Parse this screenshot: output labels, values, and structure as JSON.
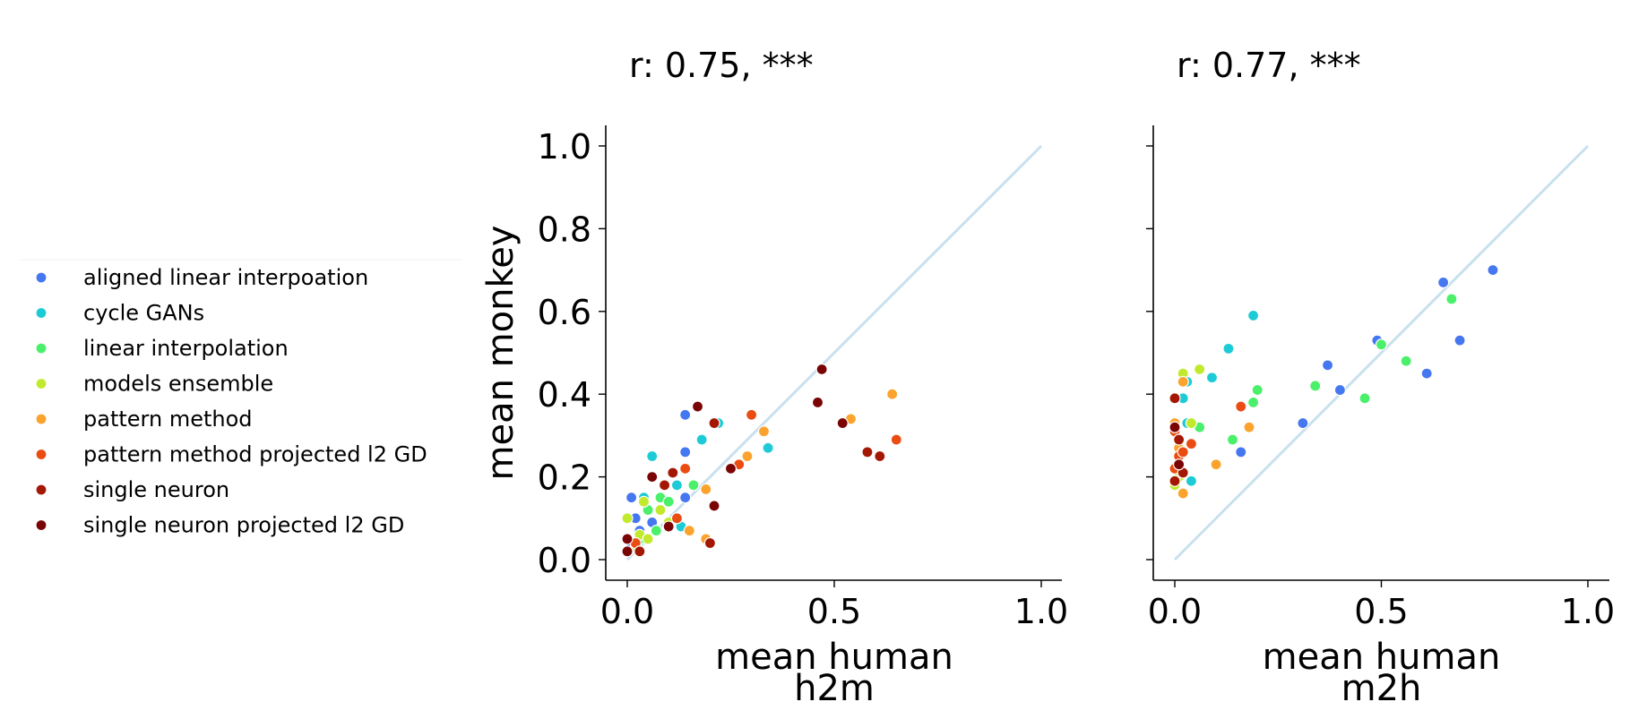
{
  "legend": {
    "items": [
      {
        "label": "aligned linear interpoation",
        "color": "#4577f0"
      },
      {
        "label": "cycle GANs",
        "color": "#1dcbd6"
      },
      {
        "label": "linear interpolation",
        "color": "#4af06a"
      },
      {
        "label": "models ensemble",
        "color": "#c2ea2d"
      },
      {
        "label": "pattern method",
        "color": "#fba32d"
      },
      {
        "label": "pattern method projected l2 GD",
        "color": "#ea4c12"
      },
      {
        "label": "single neuron",
        "color": "#a41803"
      },
      {
        "label": "single neuron projected l2 GD",
        "color": "#7a0403"
      }
    ]
  },
  "chart_data": [
    {
      "type": "scatter",
      "title": "r: 0.75, ***",
      "xlabel": "mean human",
      "xlabel2": "h2m",
      "ylabel": "mean monkey",
      "xlim": [
        -0.05,
        1.05
      ],
      "ylim": [
        -0.05,
        1.05
      ],
      "xticks": [
        "0.0",
        "0.5",
        "1.0"
      ],
      "yticks": [
        "0.0",
        "0.2",
        "0.4",
        "0.6",
        "0.8",
        "1.0"
      ],
      "grid": false,
      "identity_line": true,
      "series": [
        {
          "color": "#4577f0",
          "points": [
            [
              0.14,
              0.35
            ],
            [
              0.14,
              0.26
            ],
            [
              0.01,
              0.15
            ],
            [
              0.02,
              0.1
            ],
            [
              0.03,
              0.07
            ],
            [
              0.01,
              0.03
            ],
            [
              0.06,
              0.09
            ],
            [
              0.14,
              0.15
            ]
          ]
        },
        {
          "color": "#1dcbd6",
          "points": [
            [
              0.06,
              0.25
            ],
            [
              0.22,
              0.33
            ],
            [
              0.34,
              0.27
            ],
            [
              0.18,
              0.29
            ],
            [
              0.04,
              0.15
            ],
            [
              0.12,
              0.18
            ],
            [
              0.13,
              0.08
            ]
          ]
        },
        {
          "color": "#4af06a",
          "points": [
            [
              0.08,
              0.15
            ],
            [
              0.16,
              0.18
            ],
            [
              0.05,
              0.12
            ],
            [
              0.03,
              0.05
            ],
            [
              0.1,
              0.14
            ],
            [
              0.07,
              0.07
            ]
          ]
        },
        {
          "color": "#c2ea2d",
          "points": [
            [
              0.0,
              0.1
            ],
            [
              0.03,
              0.06
            ],
            [
              0.05,
              0.05
            ],
            [
              0.08,
              0.12
            ],
            [
              0.1,
              0.09
            ],
            [
              0.04,
              0.14
            ],
            [
              0.02,
              0.03
            ]
          ]
        },
        {
          "color": "#fba32d",
          "points": [
            [
              0.64,
              0.4
            ],
            [
              0.54,
              0.34
            ],
            [
              0.33,
              0.31
            ],
            [
              0.29,
              0.25
            ],
            [
              0.19,
              0.17
            ],
            [
              0.19,
              0.05
            ],
            [
              0.15,
              0.07
            ],
            [
              0.03,
              0.02
            ]
          ]
        },
        {
          "color": "#ea4c12",
          "points": [
            [
              0.3,
              0.35
            ],
            [
              0.65,
              0.29
            ],
            [
              0.27,
              0.23
            ],
            [
              0.14,
              0.22
            ],
            [
              0.12,
              0.1
            ],
            [
              0.02,
              0.04
            ]
          ]
        },
        {
          "color": "#a41803",
          "points": [
            [
              0.58,
              0.26
            ],
            [
              0.61,
              0.25
            ],
            [
              0.21,
              0.33
            ],
            [
              0.11,
              0.21
            ],
            [
              0.09,
              0.18
            ],
            [
              0.03,
              0.02
            ],
            [
              0.2,
              0.04
            ]
          ]
        },
        {
          "color": "#7a0403",
          "points": [
            [
              0.47,
              0.46
            ],
            [
              0.46,
              0.38
            ],
            [
              0.52,
              0.33
            ],
            [
              0.17,
              0.37
            ],
            [
              0.25,
              0.22
            ],
            [
              0.21,
              0.13
            ],
            [
              0.06,
              0.2
            ],
            [
              0.0,
              0.05
            ],
            [
              0.0,
              0.02
            ],
            [
              0.1,
              0.08
            ]
          ]
        }
      ]
    },
    {
      "type": "scatter",
      "title": "r: 0.77, ***",
      "xlabel": "mean human",
      "xlabel2": "m2h",
      "ylabel": "",
      "xlim": [
        -0.05,
        1.05
      ],
      "ylim": [
        -0.05,
        1.05
      ],
      "xticks": [
        "0.0",
        "0.5",
        "1.0"
      ],
      "yticks": [],
      "grid": false,
      "identity_line": true,
      "series": [
        {
          "color": "#4577f0",
          "points": [
            [
              0.77,
              0.7
            ],
            [
              0.65,
              0.67
            ],
            [
              0.69,
              0.53
            ],
            [
              0.49,
              0.53
            ],
            [
              0.61,
              0.45
            ],
            [
              0.37,
              0.47
            ],
            [
              0.4,
              0.41
            ],
            [
              0.31,
              0.33
            ],
            [
              0.16,
              0.26
            ]
          ]
        },
        {
          "color": "#1dcbd6",
          "points": [
            [
              0.19,
              0.59
            ],
            [
              0.13,
              0.51
            ],
            [
              0.09,
              0.44
            ],
            [
              0.03,
              0.43
            ],
            [
              0.02,
              0.39
            ],
            [
              0.03,
              0.33
            ],
            [
              0.04,
              0.19
            ]
          ]
        },
        {
          "color": "#4af06a",
          "points": [
            [
              0.67,
              0.63
            ],
            [
              0.5,
              0.52
            ],
            [
              0.56,
              0.48
            ],
            [
              0.34,
              0.42
            ],
            [
              0.46,
              0.39
            ],
            [
              0.2,
              0.41
            ],
            [
              0.19,
              0.38
            ],
            [
              0.14,
              0.29
            ],
            [
              0.06,
              0.32
            ]
          ]
        },
        {
          "color": "#c2ea2d",
          "points": [
            [
              0.02,
              0.45
            ],
            [
              0.06,
              0.46
            ],
            [
              0.04,
              0.33
            ],
            [
              0.0,
              0.18
            ],
            [
              0.01,
              0.2
            ]
          ]
        },
        {
          "color": "#fba32d",
          "points": [
            [
              0.18,
              0.32
            ],
            [
              0.1,
              0.23
            ],
            [
              0.02,
              0.16
            ],
            [
              0.02,
              0.43
            ],
            [
              0.0,
              0.33
            ],
            [
              0.01,
              0.27
            ]
          ]
        },
        {
          "color": "#ea4c12",
          "points": [
            [
              0.16,
              0.37
            ],
            [
              0.0,
              0.31
            ],
            [
              0.04,
              0.28
            ],
            [
              0.01,
              0.25
            ],
            [
              0.0,
              0.22
            ],
            [
              0.02,
              0.26
            ]
          ]
        },
        {
          "color": "#a41803",
          "points": [
            [
              0.0,
              0.39
            ],
            [
              0.02,
              0.21
            ],
            [
              0.0,
              0.19
            ],
            [
              0.01,
              0.29
            ]
          ]
        },
        {
          "color": "#7a0403",
          "points": [
            [
              0.0,
              0.32
            ],
            [
              0.01,
              0.23
            ]
          ]
        }
      ]
    }
  ]
}
